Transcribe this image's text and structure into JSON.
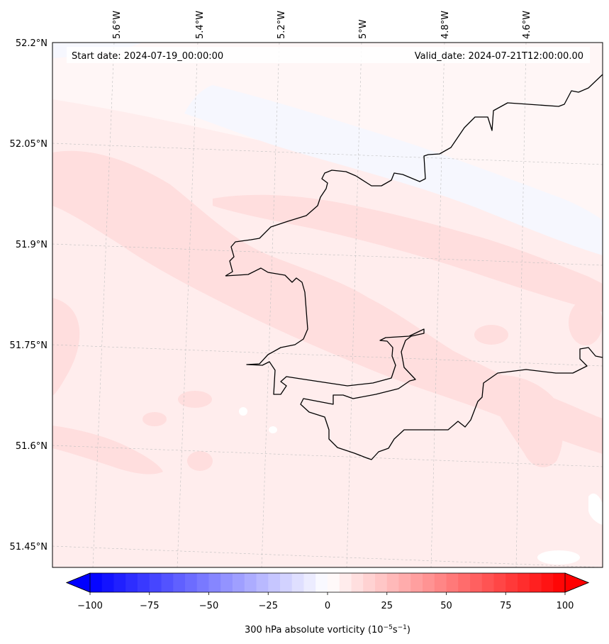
{
  "map": {
    "start_date": "Start date: 2024-07-19_00:00:00",
    "valid_date": "Valid_date: 2024-07-21T12:00:00.00",
    "lon_labels": [
      "5.6°W",
      "5.4°W",
      "5.2°W",
      "5°W",
      "4.8°W",
      "4.6°W"
    ],
    "lat_labels": [
      "52.2°N",
      "52.05°N",
      "51.9°N",
      "51.75°N",
      "51.6°N",
      "51.45°N"
    ]
  },
  "colorbar": {
    "label": "300 hPa absolute vorticity (10",
    "label_exp1": "−5",
    "label_mid": "s",
    "label_exp2": "−1",
    "label_end": ")",
    "tick_labels": [
      "−100",
      "−75",
      "−50",
      "−25",
      "0",
      "25",
      "50",
      "75",
      "100"
    ],
    "range": [
      -100,
      100
    ],
    "colormap": "bwr",
    "extend": "both"
  },
  "colors": {
    "field_base": "#ffeded",
    "field_light": "#fff6f6",
    "field_mid": "#ffdede",
    "field_negative": "#f6f7fe",
    "coastline": "#000000"
  }
}
